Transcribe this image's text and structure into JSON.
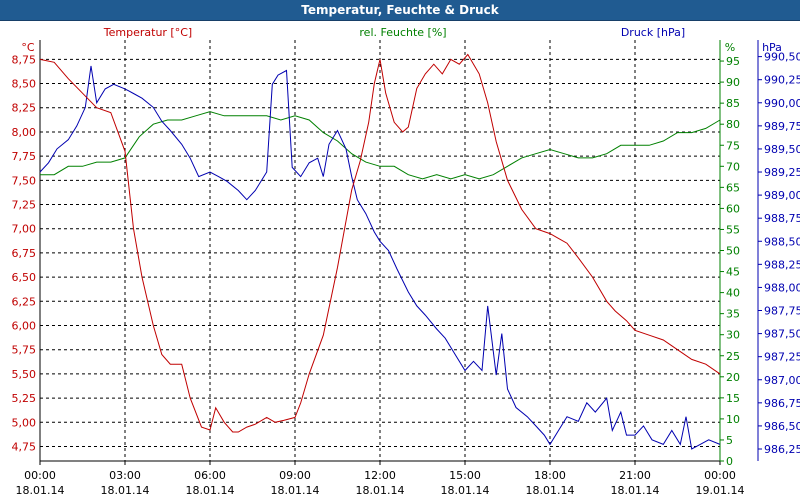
{
  "window": {
    "title": "Temperatur, Feuchte & Druck"
  },
  "chart_data": {
    "type": "line",
    "title": "Temperatur, Feuchte & Druck",
    "legend": {
      "temperature": "Temperatur [°C]",
      "humidity": "rel. Feuchte [%]",
      "pressure": "Druck [hPa]"
    },
    "units": {
      "left": "°C",
      "right1": "%",
      "right2": "hPa"
    },
    "colors": {
      "temperature": "#c00000",
      "humidity": "#008000",
      "pressure": "#0000b0",
      "title_bar": "#205b91"
    },
    "x_ticks": [
      {
        "time": "00:00",
        "date": "18.01.14"
      },
      {
        "time": "03:00",
        "date": "18.01.14"
      },
      {
        "time": "06:00",
        "date": "18.01.14"
      },
      {
        "time": "09:00",
        "date": "18.01.14"
      },
      {
        "time": "12:00",
        "date": "18.01.14"
      },
      {
        "time": "15:00",
        "date": "18.01.14"
      },
      {
        "time": "18:00",
        "date": "18.01.14"
      },
      {
        "time": "21:00",
        "date": "18.01.14"
      },
      {
        "time": "00:00",
        "date": "19.01.14"
      }
    ],
    "xlim": [
      0,
      24
    ],
    "temperature_axis": {
      "ylim": [
        4.6,
        8.95
      ],
      "ticks": [
        "4,75",
        "5,00",
        "5,25",
        "5,50",
        "5,75",
        "6,00",
        "6,25",
        "6,50",
        "6,75",
        "7,00",
        "7,25",
        "7,50",
        "7,75",
        "8,00",
        "8,25",
        "8,50",
        "8,75"
      ]
    },
    "humidity_axis": {
      "ylim": [
        0,
        100
      ],
      "ticks": [
        "0",
        "5",
        "10",
        "15",
        "20",
        "25",
        "30",
        "35",
        "40",
        "45",
        "50",
        "55",
        "60",
        "65",
        "70",
        "75",
        "80",
        "85",
        "90",
        "95"
      ]
    },
    "pressure_axis": {
      "ylim": [
        986.12,
        990.68
      ],
      "ticks": [
        "986,25",
        "986,50",
        "986,75",
        "987,00",
        "987,25",
        "987,50",
        "987,75",
        "988,00",
        "988,25",
        "988,50",
        "988,75",
        "989,00",
        "989,25",
        "989,50",
        "989,75",
        "990,00",
        "990,25",
        "990,50"
      ]
    },
    "series": [
      {
        "name": "Temperatur [°C]",
        "axis": "temperature",
        "x": [
          0,
          0.5,
          1,
          1.5,
          2,
          2.5,
          3,
          3.3,
          3.6,
          4,
          4.3,
          4.6,
          5,
          5.3,
          5.7,
          6,
          6.2,
          6.5,
          6.8,
          7,
          7.3,
          7.6,
          8,
          8.3,
          8.6,
          9,
          9.2,
          9.5,
          10,
          10.5,
          11,
          11.3,
          11.6,
          11.8,
          12,
          12.2,
          12.5,
          12.8,
          13,
          13.3,
          13.6,
          13.9,
          14.2,
          14.5,
          14.8,
          15.1,
          15.5,
          15.8,
          16.1,
          16.5,
          17,
          17.5,
          18,
          18.3,
          18.6,
          19,
          19.5,
          20,
          20.3,
          20.7,
          21,
          21.5,
          22,
          22.5,
          23,
          23.5,
          24
        ],
        "values": [
          8.75,
          8.72,
          8.55,
          8.4,
          8.25,
          8.2,
          7.8,
          7.0,
          6.5,
          6.0,
          5.7,
          5.6,
          5.6,
          5.25,
          4.95,
          4.92,
          5.15,
          5.0,
          4.9,
          4.9,
          4.95,
          4.98,
          5.05,
          5.0,
          5.02,
          5.05,
          5.2,
          5.5,
          5.9,
          6.6,
          7.4,
          7.7,
          8.1,
          8.5,
          8.75,
          8.4,
          8.1,
          8.0,
          8.05,
          8.45,
          8.6,
          8.7,
          8.6,
          8.75,
          8.7,
          8.8,
          8.6,
          8.3,
          7.9,
          7.5,
          7.2,
          7.0,
          6.95,
          6.9,
          6.85,
          6.7,
          6.5,
          6.25,
          6.15,
          6.05,
          5.95,
          5.9,
          5.85,
          5.75,
          5.65,
          5.6,
          5.5
        ]
      },
      {
        "name": "rel. Feuchte [%]",
        "axis": "humidity",
        "x": [
          0,
          0.5,
          1,
          1.5,
          2,
          2.5,
          3,
          3.5,
          4,
          4.5,
          5,
          5.5,
          6,
          6.5,
          7,
          7.5,
          8,
          8.5,
          9,
          9.5,
          10,
          10.5,
          11,
          11.5,
          12,
          12.5,
          13,
          13.5,
          14,
          14.5,
          15,
          15.5,
          16,
          16.5,
          17,
          17.5,
          18,
          18.5,
          19,
          19.5,
          20,
          20.5,
          21,
          21.5,
          22,
          22.5,
          23,
          23.5,
          24
        ],
        "values": [
          68,
          68,
          70,
          70,
          71,
          71,
          72,
          77,
          80,
          81,
          81,
          82,
          83,
          82,
          82,
          82,
          82,
          81,
          82,
          81,
          78,
          76,
          73,
          71,
          70,
          70,
          68,
          67,
          68,
          67,
          68,
          67,
          68,
          70,
          72,
          73,
          74,
          73,
          72,
          72,
          73,
          75,
          75,
          75,
          76,
          78,
          78,
          79,
          81
        ]
      },
      {
        "name": "Druck [hPa]",
        "axis": "pressure",
        "x": [
          0,
          0.3,
          0.6,
          1,
          1.3,
          1.6,
          1.8,
          2,
          2.3,
          2.6,
          3,
          3.3,
          3.6,
          4,
          4.3,
          4.6,
          5,
          5.3,
          5.6,
          6,
          6.3,
          6.6,
          7,
          7.3,
          7.6,
          8,
          8.2,
          8.4,
          8.7,
          8.9,
          9.2,
          9.5,
          9.8,
          10,
          10.2,
          10.5,
          10.8,
          11,
          11.2,
          11.5,
          11.8,
          12,
          12.3,
          12.6,
          13,
          13.3,
          13.6,
          14,
          14.3,
          14.6,
          15,
          15.3,
          15.6,
          15.8,
          16.1,
          16.3,
          16.5,
          16.8,
          17.2,
          17.5,
          17.8,
          18,
          18.3,
          18.6,
          19,
          19.3,
          19.6,
          20,
          20.2,
          20.5,
          20.7,
          21,
          21.3,
          21.6,
          22,
          22.3,
          22.6,
          22.8,
          23,
          23.3,
          23.6,
          24
        ],
        "values": [
          989.25,
          989.35,
          989.5,
          989.6,
          989.75,
          989.95,
          990.4,
          990.0,
          990.15,
          990.2,
          990.15,
          990.1,
          990.05,
          989.95,
          989.8,
          989.7,
          989.55,
          989.4,
          989.2,
          989.25,
          989.2,
          989.15,
          989.05,
          988.95,
          989.05,
          989.25,
          990.2,
          990.3,
          990.35,
          989.3,
          989.2,
          989.35,
          989.4,
          989.2,
          989.55,
          989.7,
          989.5,
          989.2,
          988.95,
          988.8,
          988.6,
          988.5,
          988.4,
          988.2,
          987.95,
          987.8,
          987.7,
          987.55,
          987.45,
          987.3,
          987.1,
          987.2,
          987.1,
          987.8,
          987.05,
          987.5,
          986.9,
          986.7,
          986.6,
          986.5,
          986.4,
          986.3,
          986.45,
          986.6,
          986.55,
          986.75,
          986.65,
          986.8,
          986.45,
          986.65,
          986.4,
          986.4,
          986.5,
          986.35,
          986.3,
          986.45,
          986.3,
          986.6,
          986.25,
          986.3,
          986.35,
          986.3
        ]
      }
    ]
  }
}
